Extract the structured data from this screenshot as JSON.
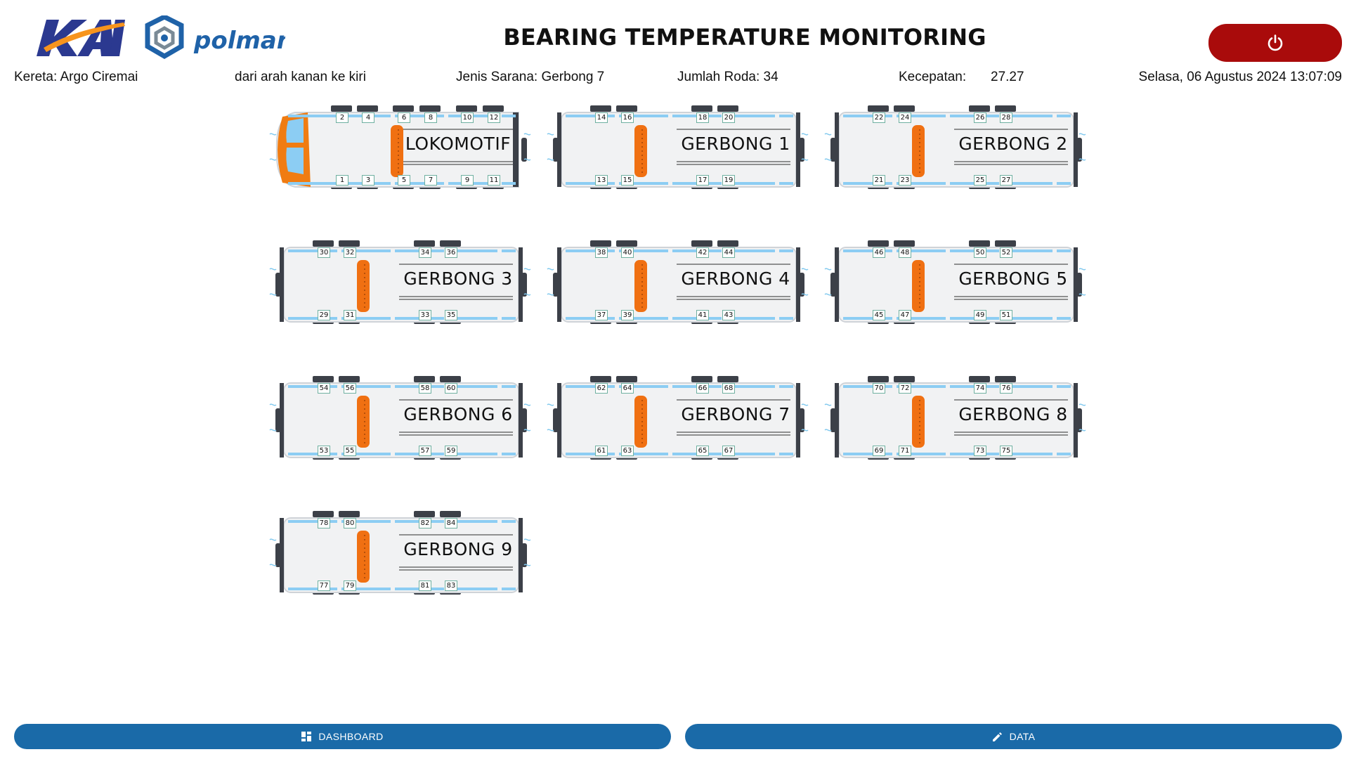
{
  "header": {
    "title": "BEARING TEMPERATURE MONITORING",
    "logo_kai": "KAI",
    "logo_polman": "polman",
    "power_icon": "power-icon",
    "accent_color": "#a90b0b"
  },
  "info": {
    "train": "Kereta: Argo Ciremai",
    "direction": "dari arah kanan ke kiri",
    "car_type": "Jenis Sarana: Gerbong 7",
    "wheel_count": "Jumlah Roda: 34",
    "speed_label": "Kecepatan:",
    "speed_value": "27.27",
    "datetime": "Selasa, 06 Agustus 2024 13:07:09"
  },
  "train": {
    "cars": [
      {
        "label": "LOKOMOTIF",
        "top_wheels": [
          "2",
          "4",
          "6",
          "8",
          "10",
          "12"
        ],
        "bottom_wheels": [
          "1",
          "3",
          "5",
          "7",
          "9",
          "11"
        ]
      },
      {
        "label": "GERBONG 1",
        "top_wheels": [
          "14",
          "16",
          "18",
          "20"
        ],
        "bottom_wheels": [
          "13",
          "15",
          "17",
          "19"
        ]
      },
      {
        "label": "GERBONG 2",
        "top_wheels": [
          "22",
          "24",
          "26",
          "28"
        ],
        "bottom_wheels": [
          "21",
          "23",
          "25",
          "27"
        ]
      },
      {
        "label": "GERBONG 3",
        "top_wheels": [
          "30",
          "32",
          "34",
          "36"
        ],
        "bottom_wheels": [
          "29",
          "31",
          "33",
          "35"
        ]
      },
      {
        "label": "GERBONG 4",
        "top_wheels": [
          "38",
          "40",
          "42",
          "44"
        ],
        "bottom_wheels": [
          "37",
          "39",
          "41",
          "43"
        ]
      },
      {
        "label": "GERBONG 5",
        "top_wheels": [
          "46",
          "48",
          "50",
          "52"
        ],
        "bottom_wheels": [
          "45",
          "47",
          "49",
          "51"
        ]
      },
      {
        "label": "GERBONG 6",
        "top_wheels": [
          "54",
          "56",
          "58",
          "60"
        ],
        "bottom_wheels": [
          "53",
          "55",
          "57",
          "59"
        ]
      },
      {
        "label": "GERBONG 7",
        "top_wheels": [
          "62",
          "64",
          "66",
          "68"
        ],
        "bottom_wheels": [
          "61",
          "63",
          "65",
          "67"
        ]
      },
      {
        "label": "GERBONG 8",
        "top_wheels": [
          "70",
          "72",
          "74",
          "76"
        ],
        "bottom_wheels": [
          "69",
          "71",
          "73",
          "75"
        ]
      },
      {
        "label": "GERBONG 9",
        "top_wheels": [
          "78",
          "80",
          "82",
          "84"
        ],
        "bottom_wheels": [
          "77",
          "79",
          "81",
          "83"
        ]
      }
    ]
  },
  "nav": {
    "dashboard_label": "DASHBOARD",
    "dashboard_icon": "dashboard-icon",
    "data_label": "DATA",
    "data_icon": "pencil-icon",
    "button_color": "#1a6aa8"
  }
}
